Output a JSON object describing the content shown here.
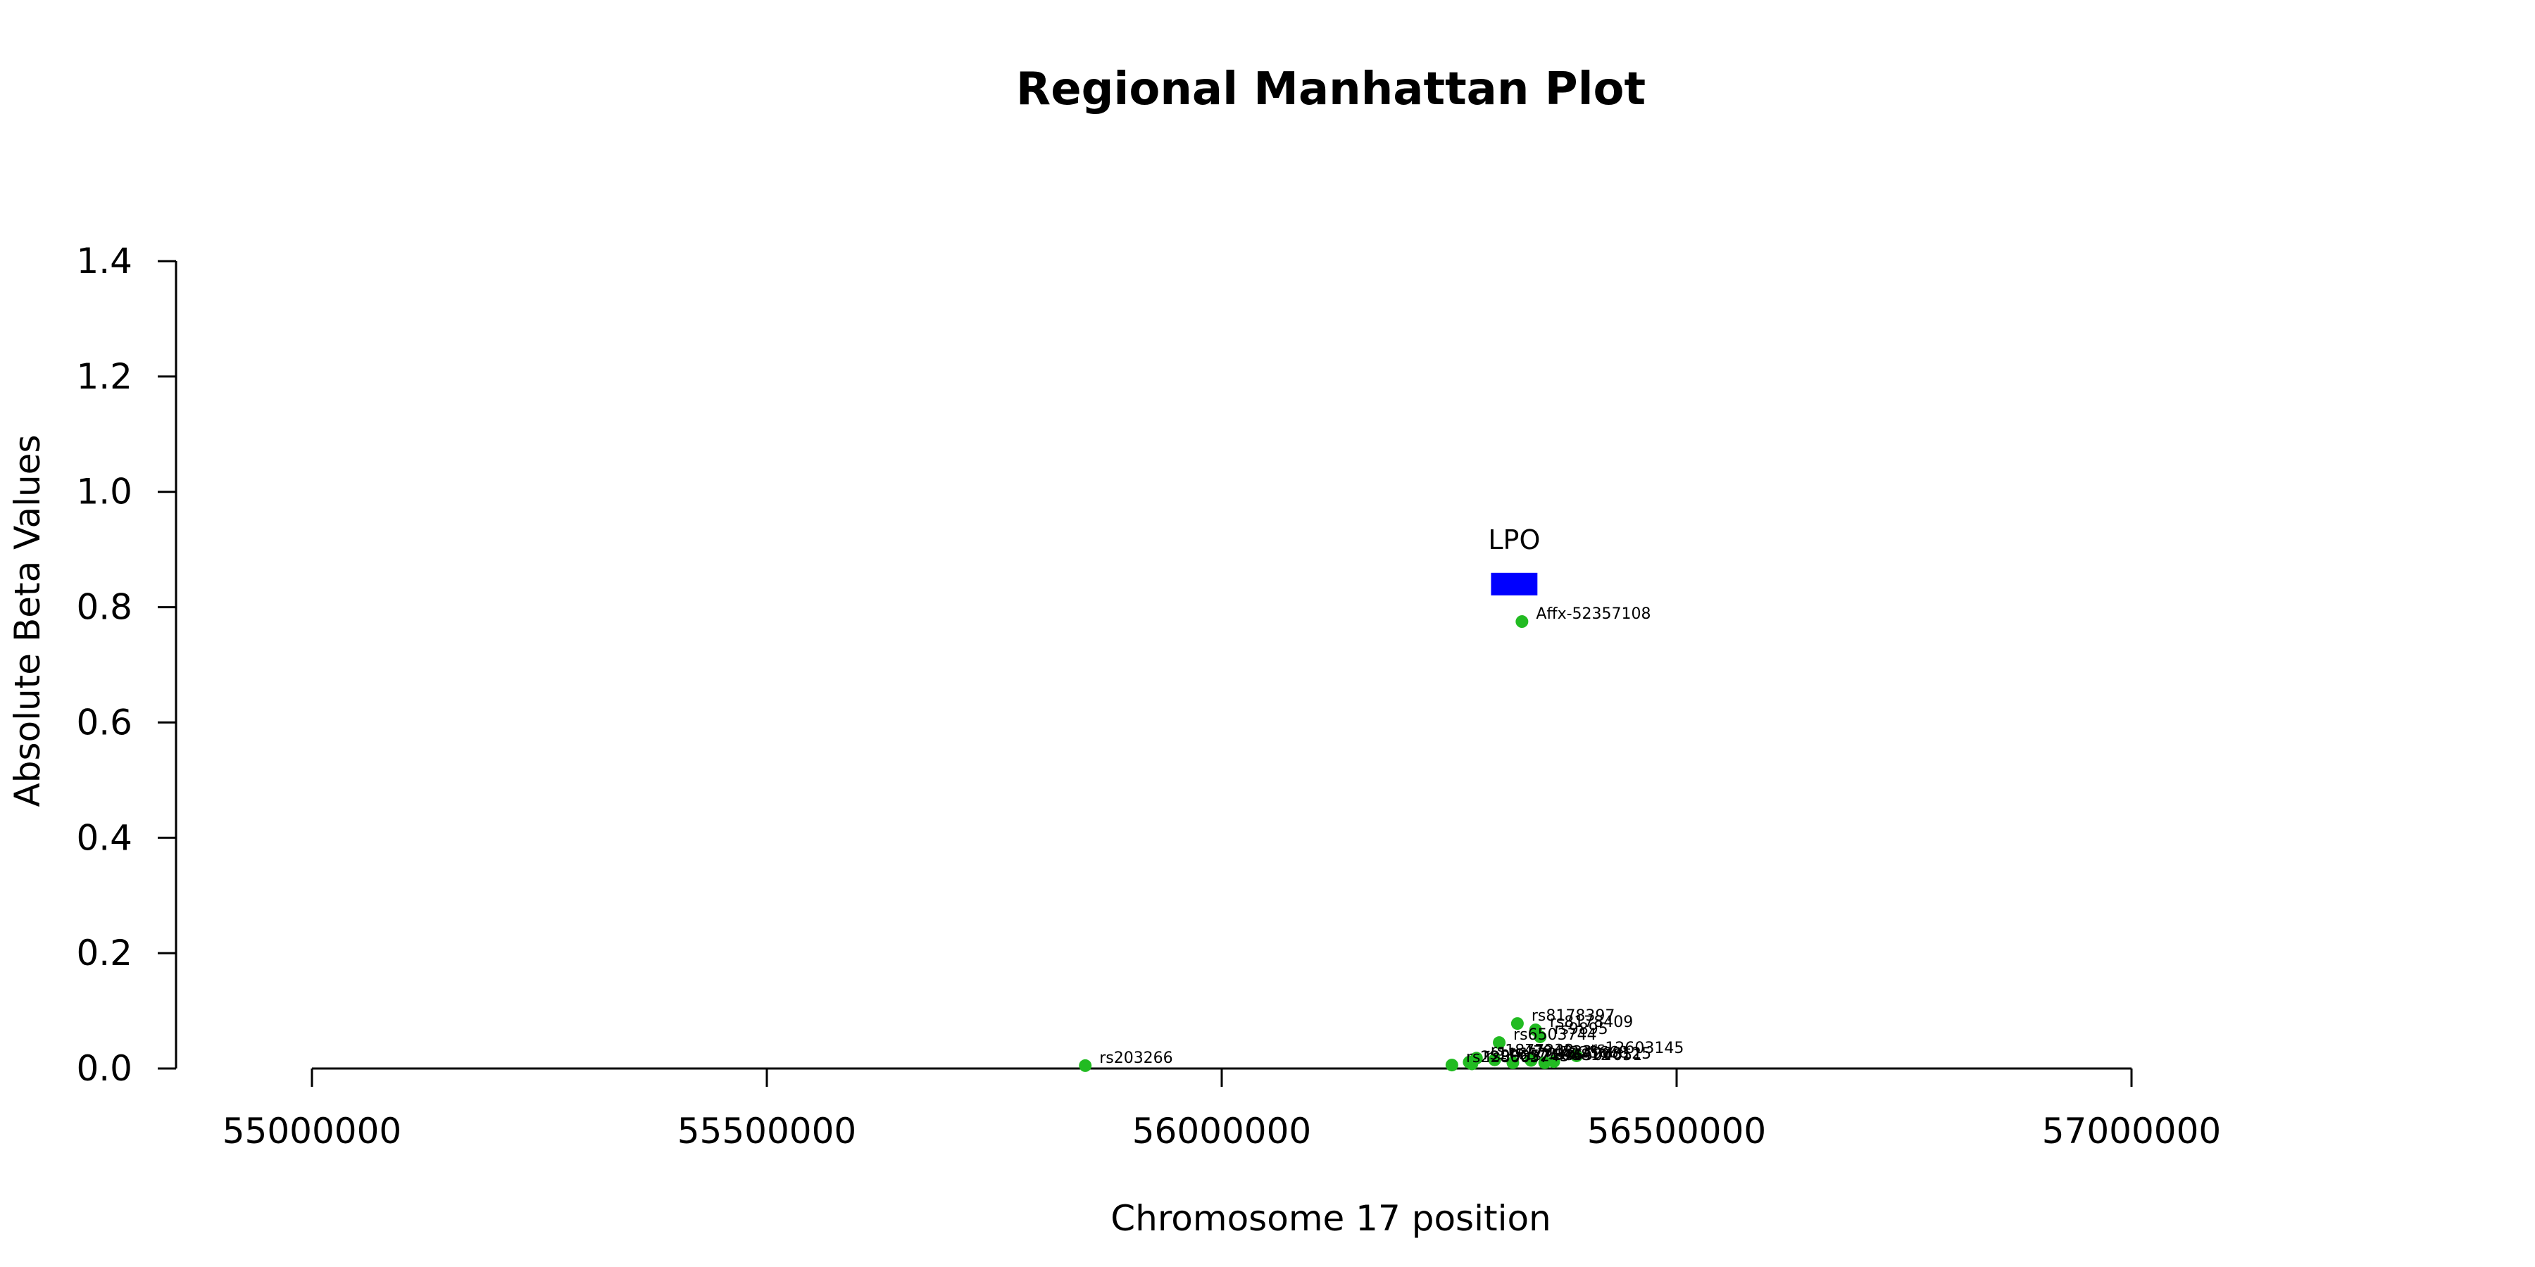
{
  "chart_data": {
    "type": "scatter",
    "title": "Regional Manhattan Plot",
    "xlabel": "Chromosome 17 position",
    "ylabel": "Absolute Beta Values",
    "xlim": [
      55000000,
      57000000
    ],
    "ylim": [
      0,
      1.4
    ],
    "x_ticks": [
      55000000,
      55500000,
      56000000,
      56500000,
      57000000
    ],
    "y_ticks": [
      0.0,
      0.2,
      0.4,
      0.6,
      0.8,
      1.0,
      1.2,
      1.4
    ],
    "x_tick_labels": [
      "55000000",
      "55500000",
      "56000000",
      "56500000",
      "57000000"
    ],
    "y_tick_labels": [
      "0.0",
      "0.2",
      "0.4",
      "0.6",
      "0.8",
      "1.0",
      "1.2",
      "1.4"
    ],
    "point_color": "#22bb22",
    "gene": {
      "name": "LPO",
      "start": 56296000,
      "end": 56347000,
      "y": 0.84,
      "color": "#0000ff"
    },
    "points": [
      {
        "label": "Affx-52357108",
        "x": 56330000,
        "y": 0.775
      },
      {
        "label": "rs8178397",
        "x": 56325000,
        "y": 0.078
      },
      {
        "label": "rs8178409",
        "x": 56345000,
        "y": 0.067
      },
      {
        "label": "rs9895",
        "x": 56350000,
        "y": 0.055
      },
      {
        "label": "rs6503744",
        "x": 56305000,
        "y": 0.045
      },
      {
        "label": "rs12603145",
        "x": 56390000,
        "y": 0.022
      },
      {
        "label": "rs1877233",
        "x": 56280000,
        "y": 0.018
      },
      {
        "label": "rs4794823",
        "x": 56300000,
        "y": 0.015
      },
      {
        "label": "rs7225668",
        "x": 56340000,
        "y": 0.014
      },
      {
        "label": "rs4968125",
        "x": 56365000,
        "y": 0.012
      },
      {
        "label": "rs11657316",
        "x": 56272000,
        "y": 0.011
      },
      {
        "label": "rs2108812",
        "x": 56320000,
        "y": 0.01
      },
      {
        "label": "rs6504051",
        "x": 56355000,
        "y": 0.01
      },
      {
        "label": "rs9905243",
        "x": 56275000,
        "y": 0.008
      },
      {
        "label": "rs2286637",
        "x": 56253000,
        "y": 0.006
      },
      {
        "label": "rs203266",
        "x": 55850000,
        "y": 0.005
      }
    ]
  }
}
